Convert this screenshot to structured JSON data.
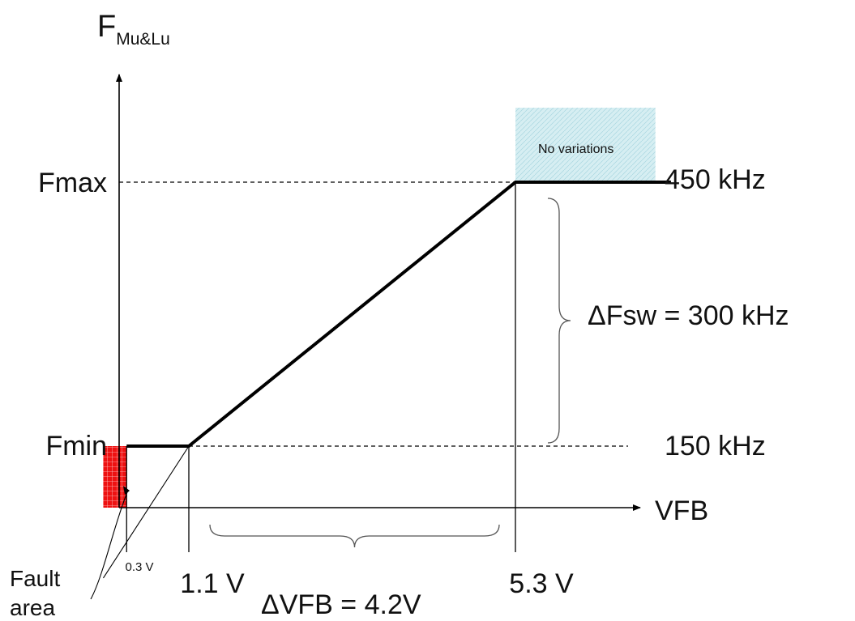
{
  "chart_data": {
    "type": "line",
    "title": "",
    "xlabel": "VFB",
    "ylabel": "F",
    "ylabel_sub": "Mu&Lu",
    "series": [
      {
        "x": [
          0.3,
          1.1,
          5.3,
          7.3
        ],
        "y": [
          150,
          150,
          450,
          450
        ]
      }
    ],
    "fault_line": {
      "x": [
        0,
        1.1
      ],
      "y": [
        0,
        150
      ]
    },
    "x_ticks": [
      {
        "value": 0.3,
        "label": "0.3 V"
      },
      {
        "value": 1.1,
        "label": "1.1 V"
      },
      {
        "value": 5.3,
        "label": "5.3 V"
      }
    ],
    "y_ticks": [
      {
        "value": 450,
        "label": "Fmax",
        "right_label": "450 kHz"
      },
      {
        "value": 150,
        "label": "Fmin",
        "right_label": "150 kHz"
      }
    ],
    "annotations": {
      "no_variations": "No variations",
      "delta_fsw": "ΔFsw = 300 kHz",
      "delta_vfb": "ΔVFB = 4.2V",
      "fault_area": [
        "Fault",
        "area"
      ]
    },
    "colors": {
      "line": "#000000",
      "fault_area": "#ee1111",
      "no_variations_area": "#d6eef2"
    },
    "grid": false
  }
}
